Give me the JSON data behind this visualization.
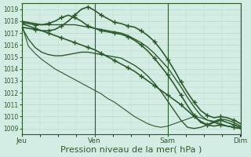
{
  "bg_color": "#d4ede4",
  "grid_color": "#b8d8cc",
  "line_color": "#2d5a2d",
  "ylim": [
    1008.5,
    1019.5
  ],
  "yticks": [
    1009,
    1010,
    1011,
    1012,
    1013,
    1014,
    1015,
    1016,
    1017,
    1018,
    1019
  ],
  "xlabel": "Pression niveau de la mer( hPa )",
  "xlabel_fontsize": 8,
  "xtick_labels": [
    "Jeu",
    "Ven",
    "Sam",
    "Dim"
  ],
  "xtick_positions": [
    0,
    33.3,
    66.6,
    100
  ],
  "series": [
    {
      "y": [
        1017.8,
        1017.6,
        1017.4,
        1017.2,
        1017.0,
        1016.8,
        1016.6,
        1016.4,
        1016.2,
        1016.0,
        1015.8,
        1015.6,
        1015.3,
        1015.0,
        1014.7,
        1014.4,
        1014.1,
        1013.8,
        1013.4,
        1013.0,
        1012.6,
        1012.2,
        1011.8,
        1011.4,
        1011.0,
        1010.5,
        1010.0,
        1009.6,
        1009.3,
        1009.2,
        1009.3,
        1009.2,
        1009.1,
        1009.0
      ],
      "lw": 1.2,
      "marker": "+",
      "markevery": 2,
      "ms": 4
    },
    {
      "y": [
        1017.5,
        1017.4,
        1017.3,
        1017.2,
        1017.2,
        1017.3,
        1017.6,
        1018.0,
        1018.5,
        1019.0,
        1019.2,
        1018.9,
        1018.5,
        1018.2,
        1017.9,
        1017.8,
        1017.6,
        1017.5,
        1017.2,
        1016.8,
        1016.3,
        1015.6,
        1014.8,
        1013.9,
        1012.9,
        1012.0,
        1011.2,
        1010.5,
        1010.1,
        1009.9,
        1010.0,
        1009.9,
        1009.7,
        1009.4
      ],
      "lw": 1.2,
      "marker": "+",
      "markevery": 2,
      "ms": 4
    },
    {
      "y": [
        1017.9,
        1017.8,
        1017.7,
        1017.7,
        1017.8,
        1018.0,
        1018.3,
        1018.5,
        1018.3,
        1018.0,
        1017.6,
        1017.4,
        1017.2,
        1017.1,
        1017.0,
        1016.9,
        1016.7,
        1016.4,
        1016.0,
        1015.5,
        1014.9,
        1014.2,
        1013.5,
        1012.7,
        1011.8,
        1010.9,
        1010.1,
        1009.5,
        1009.3,
        1009.5,
        1009.7,
        1009.5,
        1009.3,
        1009.1
      ],
      "lw": 1.2,
      "marker": "+",
      "markevery": 2,
      "ms": 4
    },
    {
      "y": [
        1018.0,
        1017.9,
        1017.8,
        1017.7,
        1017.7,
        1017.7,
        1017.7,
        1017.7,
        1017.7,
        1017.6,
        1017.5,
        1017.4,
        1017.3,
        1017.2,
        1017.1,
        1017.0,
        1016.8,
        1016.5,
        1016.2,
        1015.8,
        1015.3,
        1014.7,
        1014.1,
        1013.3,
        1012.5,
        1011.6,
        1010.8,
        1010.1,
        1009.7,
        1009.6,
        1009.8,
        1009.7,
        1009.5,
        1009.2
      ],
      "lw": 1.0,
      "marker": null,
      "markevery": null,
      "ms": 0
    },
    {
      "y": [
        1017.5,
        1016.5,
        1015.8,
        1015.4,
        1015.2,
        1015.1,
        1015.1,
        1015.2,
        1015.3,
        1015.4,
        1015.4,
        1015.3,
        1015.2,
        1015.1,
        1015.0,
        1014.9,
        1014.6,
        1014.3,
        1013.9,
        1013.4,
        1012.8,
        1012.1,
        1011.3,
        1010.5,
        1009.7,
        1009.1,
        1009.0,
        1009.1,
        1009.3,
        1009.6,
        1009.4,
        1009.2,
        1009.1,
        1009.0
      ],
      "lw": 1.0,
      "marker": null,
      "markevery": null,
      "ms": 0
    },
    {
      "y": [
        1017.7,
        1015.9,
        1015.3,
        1014.8,
        1014.4,
        1014.0,
        1013.7,
        1013.4,
        1013.1,
        1012.8,
        1012.5,
        1012.2,
        1011.9,
        1011.5,
        1011.2,
        1010.8,
        1010.4,
        1010.0,
        1009.7,
        1009.4,
        1009.2,
        1009.1,
        1009.2,
        1009.4,
        1009.6,
        1009.8,
        1010.0,
        1009.9,
        1009.7,
        1009.5,
        1009.3,
        1009.2,
        1009.1,
        1009.0
      ],
      "lw": 0.8,
      "marker": null,
      "markevery": null,
      "ms": 0
    }
  ],
  "n_points": 34
}
